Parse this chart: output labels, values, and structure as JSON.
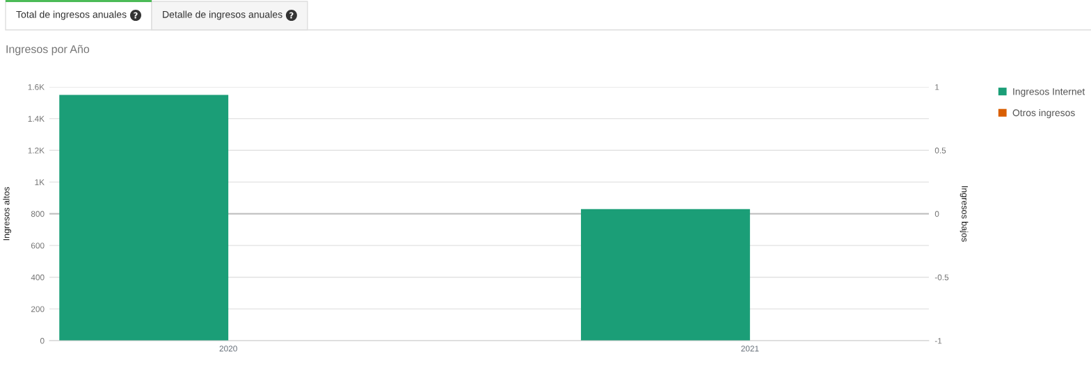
{
  "chart_data": {
    "type": "bar",
    "title": "Ingresos por Año",
    "annotations": [
      "Total de ingresos anuales",
      "Detalle de ingresos anuales"
    ],
    "categories": [
      "2020",
      "2021"
    ],
    "series": [
      {
        "name": "Ingresos Internet",
        "color": "#1b9e77",
        "values": [
          1550,
          830
        ]
      },
      {
        "name": "Otros ingresos",
        "color": "#d95f02",
        "values": [
          null,
          null
        ]
      }
    ],
    "ylabel": "Ingresos altos",
    "y2label": "Ingresos bajos",
    "ylim": [
      0,
      1600
    ],
    "yticks": [
      0,
      200,
      400,
      600,
      800,
      {
        "value": 1000,
        "label": "1K"
      },
      {
        "value": 1200,
        "label": "1.2K"
      },
      {
        "value": 1400,
        "label": "1.4K"
      },
      {
        "value": 1600,
        "label": "1.6K"
      }
    ],
    "y2lim": [
      -1,
      1
    ],
    "y2ticks": [
      -1,
      -0.5,
      0,
      0.5,
      1
    ],
    "grid": "y",
    "legend": "right",
    "ref_lines": [
      {
        "axis": "y2",
        "value": 0,
        "color": "#bdbdbd"
      }
    ]
  }
}
